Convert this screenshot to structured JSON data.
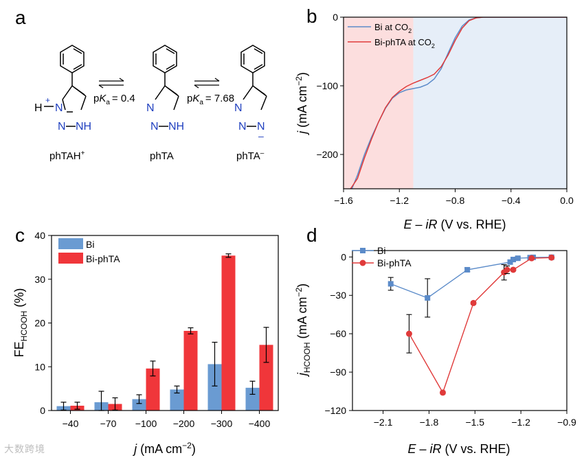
{
  "panel_labels": {
    "a": "a",
    "b": "b",
    "c": "c",
    "d": "d"
  },
  "scheme": {
    "species": [
      {
        "name": "phTAH",
        "charge": "+",
        "h_label": "H",
        "ring_atoms": [
          "N",
          "N",
          "NH"
        ]
      },
      {
        "name": "phTA",
        "charge": "",
        "h_label": "",
        "ring_atoms": [
          "N",
          "N",
          "NH"
        ]
      },
      {
        "name": "phTA",
        "charge": "–",
        "h_label": "",
        "ring_atoms": [
          "N",
          "N",
          "N"
        ]
      }
    ],
    "equilibria": [
      {
        "p": "p",
        "K": "K",
        "sub": "a",
        "value": "= 0.4"
      },
      {
        "p": "p",
        "K": "K",
        "sub": "a",
        "value": "= 7.68"
      }
    ]
  },
  "chart_data": [
    {
      "panel": "b",
      "type": "line",
      "xlabel": {
        "E": "E",
        "minus": " – ",
        "iR": "iR",
        "rest": " (V vs. RHE)"
      },
      "ylabel": {
        "j": "j",
        "rest": " (mA cm",
        "exp": "−2",
        "close": ")"
      },
      "xlim": [
        -1.6,
        0.0
      ],
      "ylim": [
        -250,
        0
      ],
      "xticks": [
        -1.6,
        -1.2,
        -0.8,
        -0.4,
        0.0
      ],
      "xtick_labels": [
        "−1.6",
        "−1.2",
        "−0.8",
        "−0.4",
        "0.0"
      ],
      "yticks": [
        0,
        -100,
        -200
      ],
      "ytick_labels": [
        "0",
        "−100",
        "−200"
      ],
      "shaded_regions": [
        {
          "x0": -1.6,
          "x1": -1.1,
          "color": "#fcdede"
        },
        {
          "x0": -1.1,
          "x1": 0.0,
          "color": "#e6eef8"
        }
      ],
      "series": [
        {
          "name": "Bi at CO",
          "sub": "2",
          "color": "#5b8bc9",
          "x": [
            -1.54,
            -1.5,
            -1.45,
            -1.4,
            -1.35,
            -1.3,
            -1.25,
            -1.2,
            -1.15,
            -1.1,
            -1.05,
            -1.0,
            -0.95,
            -0.9,
            -0.85,
            -0.8,
            -0.75,
            -0.7,
            -0.65,
            -0.6,
            -0.55,
            -0.5,
            -0.45,
            -0.4,
            -0.3,
            -0.2,
            0.0
          ],
          "y": [
            -250,
            -230,
            -200,
            -175,
            -153,
            -133,
            -118,
            -110,
            -106,
            -104,
            -102,
            -98,
            -90,
            -75,
            -52,
            -30,
            -13,
            -4,
            -1,
            0,
            0,
            0,
            0,
            0,
            0,
            0,
            0
          ]
        },
        {
          "name": "Bi-phTA at CO",
          "sub": "2",
          "color": "#e03a3a",
          "x": [
            -1.55,
            -1.5,
            -1.45,
            -1.4,
            -1.35,
            -1.3,
            -1.25,
            -1.2,
            -1.15,
            -1.1,
            -1.05,
            -1.0,
            -0.95,
            -0.9,
            -0.85,
            -0.8,
            -0.75,
            -0.7,
            -0.65,
            -0.6,
            -0.55,
            -0.5,
            -0.45,
            -0.4,
            -0.3,
            -0.2,
            0.0
          ],
          "y": [
            -250,
            -235,
            -205,
            -178,
            -153,
            -132,
            -117,
            -108,
            -101,
            -96,
            -92,
            -88,
            -83,
            -72,
            -55,
            -34,
            -16,
            -5,
            -1,
            0,
            0,
            0,
            0,
            0,
            0,
            0,
            0
          ]
        }
      ]
    },
    {
      "panel": "c",
      "type": "bar",
      "xlabel": {
        "j": "j",
        "rest": " (mA cm",
        "exp": "−2",
        "close": ")"
      },
      "ylabel": {
        "main": "FE",
        "sub": "HCOOH",
        "rest": " (%)"
      },
      "ylim": [
        0,
        40
      ],
      "yticks": [
        0,
        10,
        20,
        30,
        40
      ],
      "ytick_labels": [
        "0",
        "10",
        "20",
        "30",
        "40"
      ],
      "categories": [
        "−40",
        "−70",
        "−100",
        "−200",
        "−300",
        "−400"
      ],
      "series": [
        {
          "name": "Bi",
          "color": "#6a9bd2",
          "values": [
            1.0,
            1.9,
            2.6,
            4.8,
            10.6,
            5.2
          ],
          "errors": [
            0.9,
            2.5,
            1.0,
            0.8,
            5.0,
            1.5
          ]
        },
        {
          "name": "Bi-phTA",
          "color": "#f0363a",
          "values": [
            1.1,
            1.5,
            9.6,
            18.2,
            35.4,
            15.0
          ],
          "errors": [
            0.8,
            1.4,
            1.7,
            0.7,
            0.4,
            4.0
          ]
        }
      ]
    },
    {
      "panel": "d",
      "type": "line",
      "xlabel": {
        "E": "E",
        "minus": " – ",
        "iR": "iR",
        "rest": " (V vs. RHE)"
      },
      "ylabel": {
        "j": "j",
        "sub": "HCOOH",
        "rest": " (mA cm",
        "exp": "−2",
        "close": ")"
      },
      "xlim": [
        -2.3,
        -0.9
      ],
      "ylim": [
        -120,
        5
      ],
      "xticks": [
        -2.1,
        -1.8,
        -1.5,
        -1.2,
        -0.9
      ],
      "xtick_labels": [
        "−2.1",
        "−1.8",
        "−1.5",
        "−1.2",
        "−0.9"
      ],
      "yticks": [
        0,
        -30,
        -60,
        -90,
        -120
      ],
      "ytick_labels": [
        "0",
        "−30",
        "−60",
        "−90",
        "−120"
      ],
      "series": [
        {
          "name": "Bi",
          "color": "#5b8bc9",
          "marker": "square",
          "x": [
            -2.05,
            -1.81,
            -1.55,
            -1.27,
            -1.25,
            -1.22,
            -1.14,
            -1.12,
            -1.0
          ],
          "y": [
            -21,
            -32,
            -10,
            -4,
            -2,
            -1,
            -0.5,
            -0.3,
            -0.2
          ],
          "errors": [
            5,
            15,
            1.5,
            1.5,
            1.5,
            1,
            0.5,
            0.5,
            0.5
          ]
        },
        {
          "name": "Bi-phTA",
          "color": "#e03a3a",
          "marker": "circle",
          "x": [
            -1.93,
            -1.71,
            -1.51,
            -1.31,
            -1.29,
            -1.25,
            -1.13,
            -1.0
          ],
          "y": [
            -60,
            -106,
            -36,
            -12,
            -10,
            -10,
            -1,
            -0.5
          ],
          "errors": [
            15,
            1,
            1,
            6,
            3,
            1,
            0.5,
            0.3
          ]
        }
      ]
    }
  ],
  "watermark": "大数跨境"
}
